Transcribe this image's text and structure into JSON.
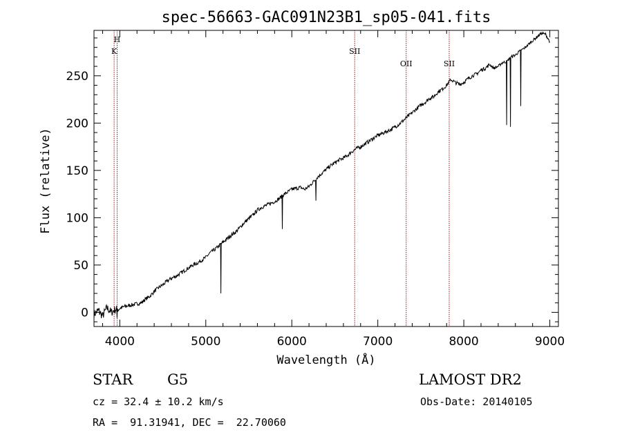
{
  "chart_data": {
    "type": "line",
    "title": "spec-56663-GAC091N23B1_sp05-041.fits",
    "xlabel": "Wavelength (Å)",
    "ylabel": "Flux (relative)",
    "xlim": [
      3700,
      9100
    ],
    "ylim": [
      -15,
      298
    ],
    "xticks": [
      4000,
      5000,
      6000,
      7000,
      8000,
      9000
    ],
    "yticks": [
      0,
      50,
      100,
      150,
      200,
      250
    ],
    "grid": false,
    "line_color": "#000000",
    "series": [
      {
        "x": [
          3700,
          3750,
          3800,
          3850,
          3900,
          3950,
          4000,
          4050,
          4100,
          4150,
          4200,
          4250,
          4300,
          4350,
          4400,
          4450,
          4500,
          4550,
          4600,
          4650,
          4700,
          4750,
          4800,
          4850,
          4900,
          4950,
          5000,
          5050,
          5100,
          5150,
          5200,
          5250,
          5300,
          5350,
          5400,
          5450,
          5500,
          5550,
          5600,
          5650,
          5700,
          5750,
          5800,
          5850,
          5900,
          5950,
          6000,
          6050,
          6100,
          6150,
          6200,
          6250,
          6300,
          6350,
          6400,
          6450,
          6500,
          6550,
          6600,
          6650,
          6700,
          6750,
          6800,
          6850,
          6900,
          6950,
          7000,
          7050,
          7100,
          7150,
          7200,
          7250,
          7300,
          7350,
          7400,
          7450,
          7500,
          7550,
          7600,
          7650,
          7700,
          7750,
          7800,
          7850,
          7900,
          7950,
          8000,
          8050,
          8100,
          8150,
          8200,
          8250,
          8300,
          8350,
          8400,
          8450,
          8500,
          8550,
          8600,
          8650,
          8700,
          8750,
          8800,
          8850,
          8900,
          8950,
          9000
        ],
        "y": [
          -2,
          2,
          -4,
          5,
          0,
          3,
          4,
          6,
          7,
          8,
          9,
          10,
          14,
          17,
          22,
          26,
          29,
          33,
          36,
          38,
          41,
          44,
          47,
          50,
          52,
          55,
          58,
          63,
          66,
          70,
          74,
          78,
          82,
          85,
          90,
          95,
          99,
          103,
          108,
          111,
          113,
          115,
          117,
          120,
          124,
          127,
          130,
          131,
          132,
          130,
          133,
          138,
          143,
          147,
          151,
          155,
          158,
          161,
          163,
          166,
          170,
          173,
          175,
          178,
          181,
          184,
          187,
          189,
          191,
          193,
          196,
          199,
          203,
          207,
          211,
          215,
          219,
          222,
          226,
          228,
          233,
          236,
          240,
          246,
          243,
          241,
          243,
          247,
          250,
          252,
          256,
          258,
          262,
          258,
          260,
          264,
          265,
          270,
          272,
          276,
          279,
          283,
          287,
          291,
          295,
          294,
          286
        ]
      }
    ],
    "lines": [
      {
        "label": "K",
        "x": 3934
      },
      {
        "label": "H",
        "x": 3969
      },
      {
        "label": "SII",
        "x": 6731
      },
      {
        "label": "OII",
        "x": 7330
      },
      {
        "label": "SII",
        "x": 7830
      }
    ],
    "absorption_features": [
      {
        "x": 3968,
        "y": -6
      },
      {
        "x": 5175,
        "y": 20
      },
      {
        "x": 5890,
        "y": 88
      },
      {
        "x": 6280,
        "y": 118
      },
      {
        "x": 8498,
        "y": 198
      },
      {
        "x": 8542,
        "y": 196
      },
      {
        "x": 8662,
        "y": 218
      }
    ]
  },
  "info": {
    "object_type": "STAR",
    "subclass": "G5",
    "release": "LAMOST DR2",
    "redshift_line": "cz = 32.4 ± 10.2 km/s",
    "obs_date_line": "Obs-Date: 20140105",
    "coord_line": "RA =  91.31941, DEC =  22.70060"
  }
}
